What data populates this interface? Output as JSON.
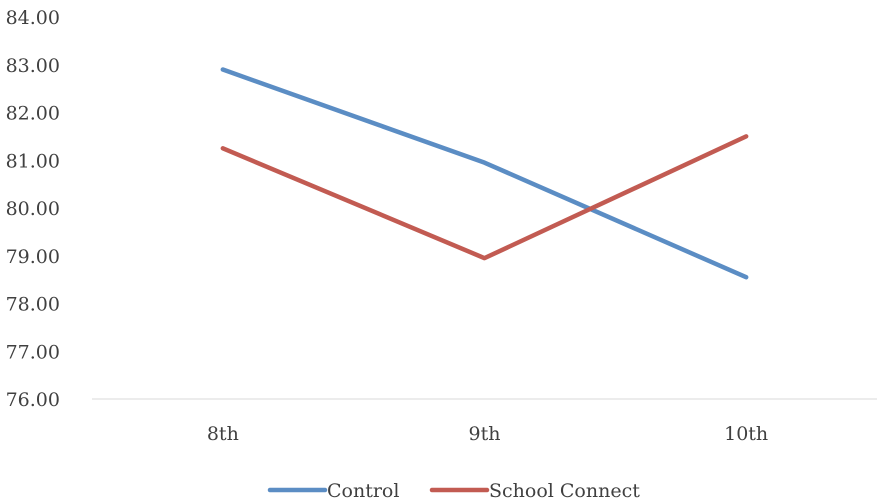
{
  "chart_data": {
    "type": "line",
    "title": "",
    "xlabel": "",
    "ylabel": "",
    "categories": [
      "8th",
      "9th",
      "10th"
    ],
    "series": [
      {
        "name": "Control",
        "values": [
          82.9,
          80.95,
          78.55
        ],
        "color": "#5b8dc4"
      },
      {
        "name": "School Connect",
        "values": [
          81.25,
          78.95,
          81.5
        ],
        "color": "#c25b52"
      }
    ],
    "ylim": [
      76,
      84
    ],
    "ytick_step": 1,
    "ytick_labels": [
      "76.00",
      "77.00",
      "78.00",
      "79.00",
      "80.00",
      "81.00",
      "82.00",
      "83.00",
      "84.00"
    ],
    "grid": false,
    "legend": "bottom-center"
  }
}
